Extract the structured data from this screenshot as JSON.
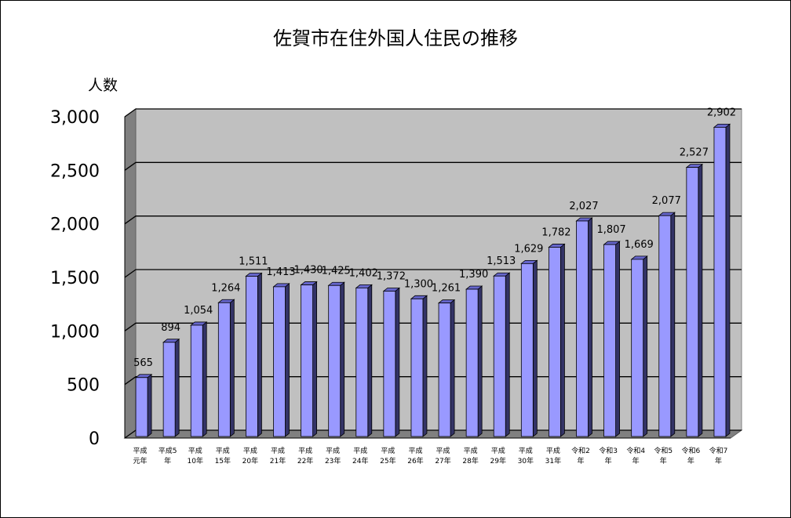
{
  "chart_data": {
    "type": "bar",
    "title": "佐賀市在住外国人住民の推移",
    "ylabel": "人数",
    "xlabel": "",
    "ylim": [
      0,
      3000
    ],
    "yticks": [
      "0",
      "500",
      "1,000",
      "1,500",
      "2,000",
      "2,500",
      "3,000"
    ],
    "grid": true,
    "bar_color": "#9999ff",
    "categories": [
      [
        "平成",
        "元年"
      ],
      [
        "平成5",
        "年"
      ],
      [
        "平成",
        "10年"
      ],
      [
        "平成",
        "15年"
      ],
      [
        "平成",
        "20年"
      ],
      [
        "平成",
        "21年"
      ],
      [
        "平成",
        "22年"
      ],
      [
        "平成",
        "23年"
      ],
      [
        "平成",
        "24年"
      ],
      [
        "平成",
        "25年"
      ],
      [
        "平成",
        "26年"
      ],
      [
        "平成",
        "27年"
      ],
      [
        "平成",
        "28年"
      ],
      [
        "平成",
        "29年"
      ],
      [
        "平成",
        "30年"
      ],
      [
        "平成",
        "31年"
      ],
      [
        "令和2",
        "年"
      ],
      [
        "令和3",
        "年"
      ],
      [
        "令和4",
        "年"
      ],
      [
        "令和5",
        "年"
      ],
      [
        "令和6",
        "年"
      ],
      [
        "令和7",
        "年"
      ]
    ],
    "values": [
      565,
      894,
      1054,
      1264,
      1511,
      1413,
      1430,
      1425,
      1402,
      1372,
      1300,
      1261,
      1390,
      1513,
      1629,
      1782,
      2027,
      1807,
      1669,
      2077,
      2527,
      2902
    ],
    "value_labels": [
      "565",
      "894",
      "1,054",
      "1,264",
      "1,511",
      "1,413",
      "1,430",
      "1,425",
      "1,402",
      "1,372",
      "1,300",
      "1,261",
      "1,390",
      "1,513",
      "1,629",
      "1,782",
      "2,027",
      "1,807",
      "1,669",
      "2,077",
      "2,527",
      "2,902"
    ]
  }
}
